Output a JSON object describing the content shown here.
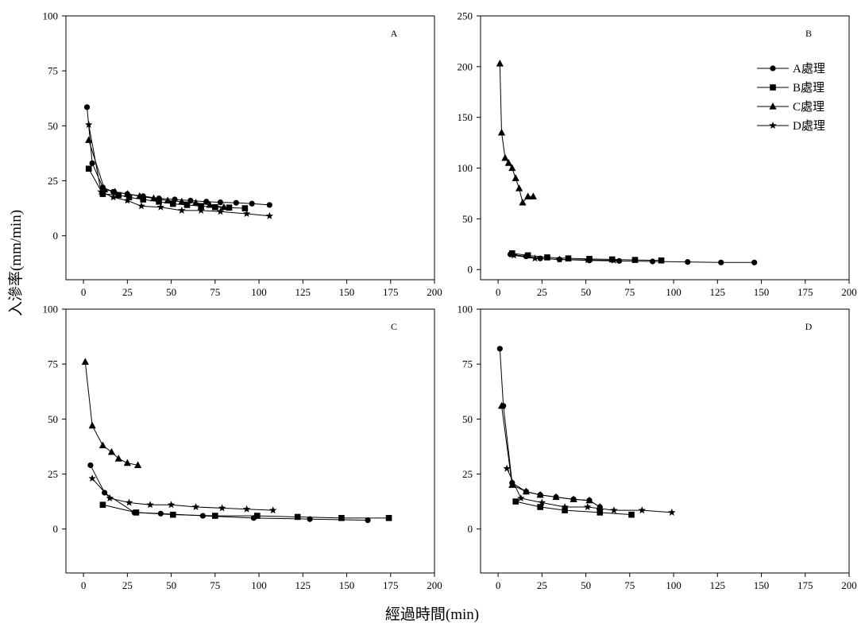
{
  "figure": {
    "ylabel": "入滲率(mm/min)",
    "xlabel": "經過時間(min)"
  },
  "legend": {
    "entries": [
      {
        "label": "A處理",
        "marker": "circle"
      },
      {
        "label": "B處理",
        "marker": "square"
      },
      {
        "label": "C處理",
        "marker": "triangle"
      },
      {
        "label": "D處理",
        "marker": "star"
      }
    ],
    "placement": "top-right of panel B"
  },
  "chart_data": [
    {
      "type": "line",
      "panel": "A",
      "xlim": [
        -10,
        200
      ],
      "ylim": [
        -20,
        100
      ],
      "xticks": [
        "0",
        "25",
        "50",
        "75",
        "100",
        "125",
        "150",
        "175",
        "200"
      ],
      "yticks": [
        "0",
        "25",
        "50",
        "75",
        "100"
      ],
      "series": [
        {
          "name": "A處理",
          "marker": "circle",
          "x": [
            2,
            5,
            11,
            17,
            25,
            34,
            43,
            52,
            61,
            70,
            78,
            87,
            96,
            106
          ],
          "y": [
            58.5,
            33,
            22,
            20,
            19,
            18,
            17,
            16.5,
            16,
            15.5,
            15.2,
            15,
            14.6,
            14
          ]
        },
        {
          "name": "B處理",
          "marker": "square",
          "x": [
            3,
            11,
            20,
            26,
            34,
            43,
            51,
            59,
            67,
            75,
            83,
            92
          ],
          "y": [
            30.5,
            19,
            18.5,
            17.5,
            16.5,
            15.5,
            14.5,
            14,
            13.5,
            13,
            12.8,
            12.5
          ]
        },
        {
          "name": "C處理",
          "marker": "triangle",
          "x": [
            3,
            12,
            18,
            25,
            32,
            40,
            48,
            56,
            64,
            72,
            80
          ],
          "y": [
            43.5,
            21,
            20,
            19,
            18,
            17,
            16,
            15.5,
            15,
            14,
            13
          ]
        },
        {
          "name": "D處理",
          "marker": "star",
          "x": [
            3,
            10,
            17,
            25,
            33,
            44,
            56,
            67,
            78,
            93,
            106
          ],
          "y": [
            50.5,
            20,
            17.5,
            16,
            13.5,
            13,
            11.5,
            11.5,
            11,
            10,
            9
          ]
        }
      ]
    },
    {
      "type": "line",
      "panel": "B",
      "xlim": [
        -10,
        200
      ],
      "ylim": [
        -10,
        250
      ],
      "xticks": [
        "0",
        "25",
        "50",
        "75",
        "100",
        "125",
        "150",
        "175",
        "200"
      ],
      "yticks": [
        "0",
        "50",
        "100",
        "150",
        "200",
        "250"
      ],
      "series": [
        {
          "name": "A處理",
          "marker": "circle",
          "x": [
            7,
            16,
            24,
            35,
            52,
            69,
            88,
            108,
            127,
            146
          ],
          "y": [
            15,
            13,
            11,
            10,
            9,
            8.5,
            8,
            7.5,
            7,
            7
          ]
        },
        {
          "name": "B處理",
          "marker": "square",
          "x": [
            8,
            17,
            28,
            40,
            52,
            65,
            78,
            93
          ],
          "y": [
            16,
            14,
            12,
            11,
            10.5,
            10,
            9.5,
            9
          ]
        },
        {
          "name": "C處理",
          "marker": "triangle",
          "x": [
            1,
            2,
            4,
            6,
            8,
            10,
            12,
            14,
            17,
            20
          ],
          "y": [
            203,
            135,
            110,
            105,
            100,
            90,
            80,
            66,
            72,
            72
          ]
        },
        {
          "name": "D處理",
          "marker": "star",
          "x": [
            9,
            21,
            35,
            51,
            66
          ],
          "y": [
            14,
            11,
            10,
            9.5,
            9
          ]
        }
      ]
    },
    {
      "type": "line",
      "panel": "C",
      "xlim": [
        -10,
        200
      ],
      "ylim": [
        -20,
        100
      ],
      "xticks": [
        "0",
        "25",
        "50",
        "75",
        "100",
        "125",
        "150",
        "175",
        "200"
      ],
      "yticks": [
        "0",
        "25",
        "50",
        "75",
        "100"
      ],
      "series": [
        {
          "name": "A處理",
          "marker": "circle",
          "x": [
            4,
            12,
            29,
            44,
            68,
            97,
            129,
            162
          ],
          "y": [
            29,
            16.5,
            7.5,
            7,
            6,
            5,
            4.5,
            4
          ]
        },
        {
          "name": "B處理",
          "marker": "square",
          "x": [
            11,
            30,
            51,
            75,
            99,
            122,
            147,
            174
          ],
          "y": [
            11,
            7.5,
            6.5,
            6,
            6,
            5.5,
            5,
            5
          ]
        },
        {
          "name": "C處理",
          "marker": "triangle",
          "x": [
            1,
            5,
            11,
            16,
            20,
            25,
            31
          ],
          "y": [
            76,
            47,
            38,
            35,
            32,
            30,
            29
          ]
        },
        {
          "name": "D處理",
          "marker": "star",
          "x": [
            5,
            15,
            26,
            38,
            50,
            64,
            79,
            93,
            108
          ],
          "y": [
            23,
            14,
            12,
            11,
            11,
            10,
            9.5,
            9,
            8.5
          ]
        }
      ]
    },
    {
      "type": "line",
      "panel": "D",
      "xlim": [
        -10,
        200
      ],
      "ylim": [
        -20,
        100
      ],
      "xticks": [
        "0",
        "25",
        "50",
        "75",
        "100",
        "125",
        "150",
        "175",
        "200"
      ],
      "yticks": [
        "0",
        "25",
        "50",
        "75",
        "100"
      ],
      "series": [
        {
          "name": "A處理",
          "marker": "circle",
          "x": [
            1,
            3,
            8,
            16,
            24,
            33,
            43,
            52,
            58
          ],
          "y": [
            82,
            56,
            21,
            17,
            15.5,
            14.5,
            13.5,
            13,
            10
          ]
        },
        {
          "name": "B處理",
          "marker": "square",
          "x": [
            10,
            24,
            38,
            58,
            76
          ],
          "y": [
            12.5,
            10,
            8.5,
            7.5,
            6.5
          ]
        },
        {
          "name": "C處理",
          "marker": "triangle",
          "x": [
            2,
            8,
            16,
            24,
            33,
            43,
            52,
            58
          ],
          "y": [
            56,
            20,
            17,
            15.5,
            14.5,
            13.5,
            13,
            10
          ]
        },
        {
          "name": "D處理",
          "marker": "star",
          "x": [
            5,
            13,
            25,
            38,
            51,
            66,
            82,
            99
          ],
          "y": [
            27.5,
            14,
            12,
            10,
            10,
            8.5,
            8.5,
            7.5
          ]
        }
      ]
    }
  ]
}
